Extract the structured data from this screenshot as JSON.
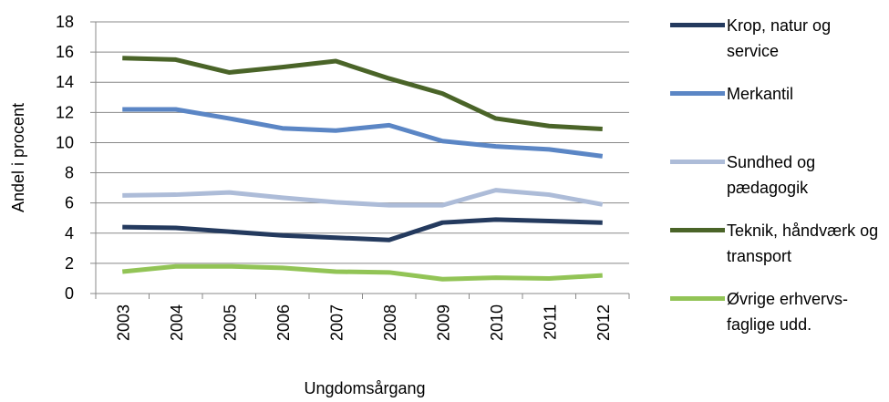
{
  "chart_data": {
    "type": "line",
    "x_label": "Ungdomsårgang",
    "y_label": "Andel i procent",
    "categories": [
      "2003",
      "2004",
      "2005",
      "2006",
      "2007",
      "2008",
      "2009",
      "2010",
      "2011",
      "2012"
    ],
    "series": [
      {
        "name": "Krop, natur og service",
        "color": "#243a5e",
        "values": [
          4.4,
          4.35,
          4.1,
          3.85,
          3.7,
          3.55,
          4.7,
          4.9,
          4.8,
          4.7
        ]
      },
      {
        "name": "Merkantil",
        "color": "#5b86c5",
        "values": [
          12.2,
          12.2,
          11.6,
          10.95,
          10.8,
          11.15,
          10.1,
          9.75,
          9.55,
          9.1
        ]
      },
      {
        "name": "Sundhed og pædagogik",
        "color": "#adbcd8",
        "values": [
          6.5,
          6.55,
          6.7,
          6.35,
          6.05,
          5.85,
          5.85,
          6.85,
          6.55,
          5.9
        ]
      },
      {
        "name": "Teknik, håndværk og transport",
        "color": "#4a6428",
        "values": [
          15.6,
          15.5,
          14.65,
          15.0,
          15.4,
          14.25,
          13.25,
          11.6,
          11.1,
          10.9
        ]
      },
      {
        "name": "Øvrige erhvervs-faglige udd.",
        "color": "#92c456",
        "values": [
          1.45,
          1.8,
          1.8,
          1.7,
          1.45,
          1.4,
          0.95,
          1.05,
          1.0,
          1.2
        ]
      }
    ],
    "ylim": [
      0,
      18
    ],
    "yticks": [
      0,
      2,
      4,
      6,
      8,
      10,
      12,
      14,
      16,
      18
    ],
    "grid": true
  }
}
